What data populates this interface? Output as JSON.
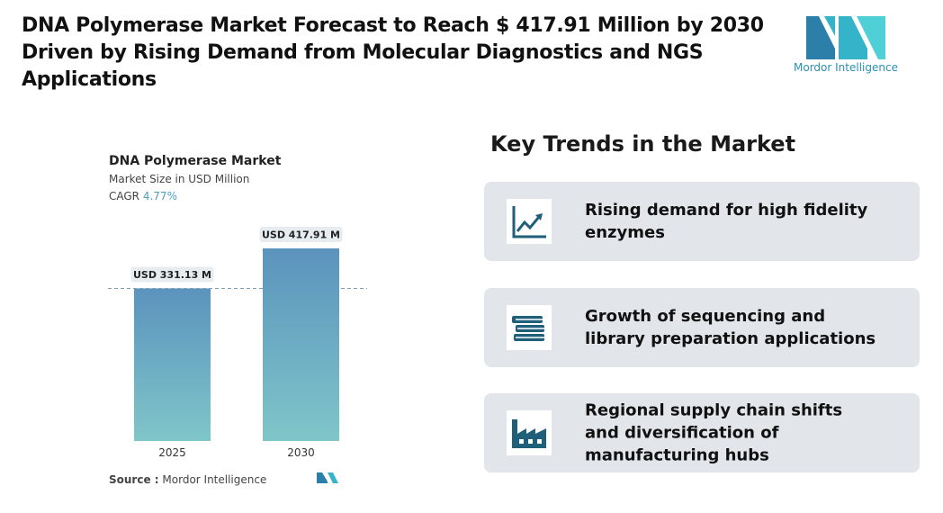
{
  "headline": [
    "DNA Polymerase Market Forecast to Reach $ 417.91 Million by 2030",
    "Driven by Rising Demand from Molecular Diagnostics and NGS",
    "Applications"
  ],
  "logo": "Mordor Intelligence",
  "chart_data": {
    "type": "bar",
    "title": "DNA Polymerase Market",
    "subtitle": "Market Size in USD Million",
    "cagr": {
      "label": "CAGR",
      "value": "4.77%"
    },
    "categories": [
      "2025",
      "2030"
    ],
    "values": [
      331.13,
      417.91
    ],
    "value_labels": [
      "USD 331.13 M",
      "USD 417.91 M"
    ],
    "source": {
      "label": "Source :",
      "name": "Mordor Intelligence"
    }
  },
  "trends": {
    "title": "Key Trends in the Market",
    "items": [
      "Rising demand for high fidelity enzymes",
      "Growth of sequencing and library preparation applications",
      "Regional supply chain shifts and diversification of manufacturing hubs"
    ]
  }
}
